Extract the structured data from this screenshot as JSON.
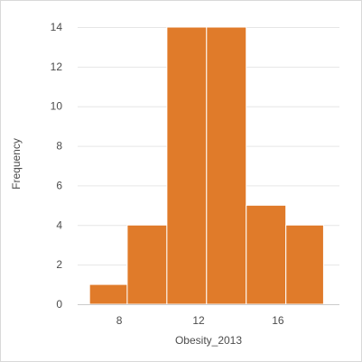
{
  "chart_data": {
    "type": "bar",
    "subtype": "histogram",
    "title": "",
    "xlabel": "Obesity_2013",
    "ylabel": "Frequency",
    "bins": [
      {
        "x0": 6.5,
        "x1": 8.4,
        "value": 1
      },
      {
        "x0": 8.4,
        "x1": 10.4,
        "value": 4
      },
      {
        "x0": 10.4,
        "x1": 12.4,
        "value": 14
      },
      {
        "x0": 12.4,
        "x1": 14.4,
        "value": 14
      },
      {
        "x0": 14.4,
        "x1": 16.4,
        "value": 5
      },
      {
        "x0": 16.4,
        "x1": 18.3,
        "value": 4
      }
    ],
    "xlim": [
      5.9,
      19.1
    ],
    "ylim": [
      0,
      14
    ],
    "xticks": [
      8,
      12,
      16
    ],
    "yticks": [
      0,
      2,
      4,
      6,
      8,
      10,
      12,
      14
    ],
    "grid": true,
    "bar_color": "#e07b2a"
  }
}
